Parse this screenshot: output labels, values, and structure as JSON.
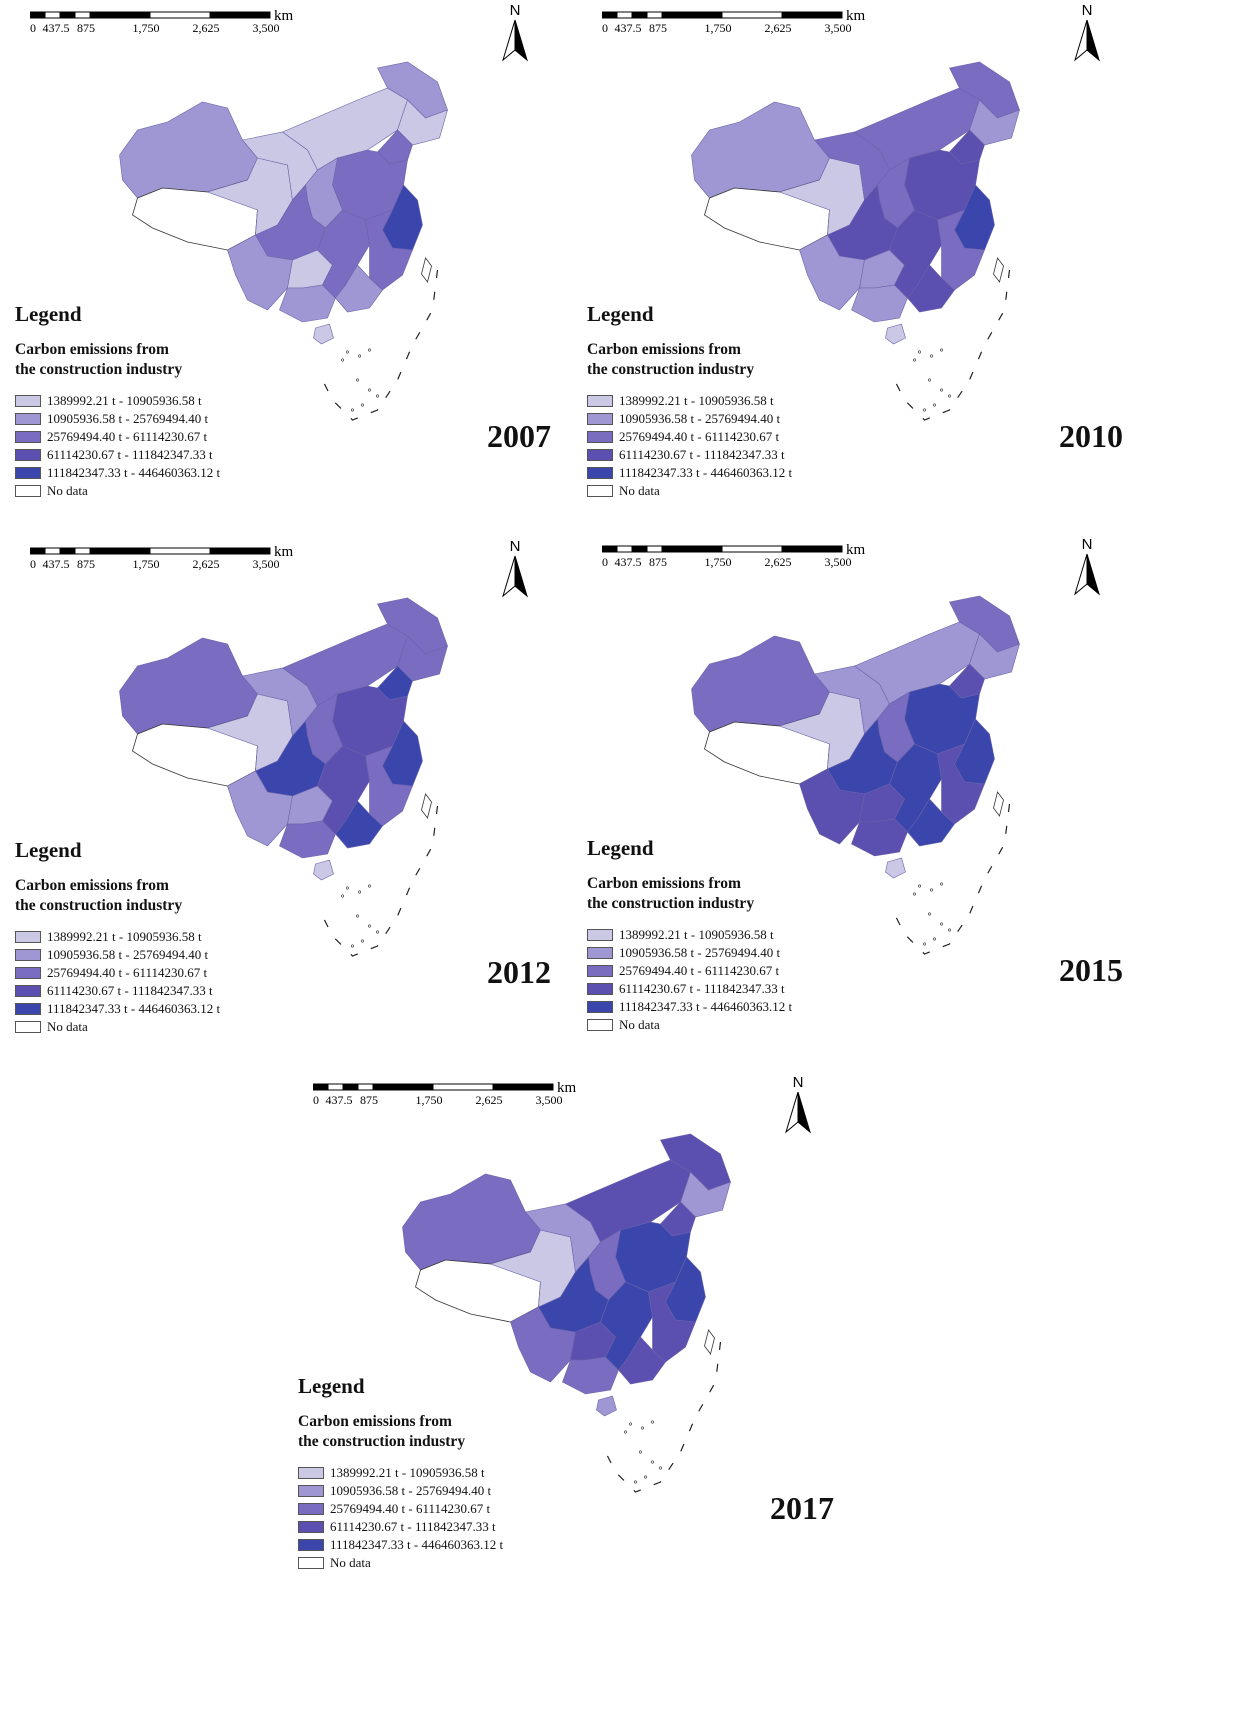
{
  "scale": {
    "unit": "km",
    "ticks": [
      "0",
      "437.5",
      "875",
      "1,750",
      "2,625",
      "3,500"
    ]
  },
  "north_label": "N",
  "legend": {
    "title": "Legend",
    "subtitle_line1": "Carbon emissions from",
    "subtitle_line2": "the construction industry",
    "classes": [
      {
        "label": "1389992.21 t - 10905936.58 t",
        "color": "#cbc8e6"
      },
      {
        "label": "10905936.58 t - 25769494.40 t",
        "color": "#9f97d3"
      },
      {
        "label": "25769494.40 t - 61114230.67 t",
        "color": "#7a6cc0"
      },
      {
        "label": "61114230.67 t - 111842347.33 t",
        "color": "#5b4fb0"
      },
      {
        "label": "111842347.33 t - 446460363.12 t",
        "color": "#3b46ad"
      },
      {
        "label": "No data",
        "color": "#ffffff"
      }
    ]
  },
  "maps": [
    {
      "year": "2007",
      "class_by_region": {
        "xinjiang": 1,
        "tibet": 5,
        "qinghai": 0,
        "gansu": 0,
        "inner_mongolia": 0,
        "heilongjiang": 1,
        "jilin": 0,
        "liaoning": 2,
        "north_plain": 2,
        "shaanxi": 1,
        "sichuan": 2,
        "yunnan": 1,
        "guizhou": 0,
        "guangxi": 1,
        "south_central": 2,
        "jiangsu_zhejiang": 4,
        "fujian": 2,
        "guangdong": 1,
        "hainan": 0
      }
    },
    {
      "year": "2010",
      "class_by_region": {
        "xinjiang": 1,
        "tibet": 5,
        "qinghai": 0,
        "gansu": 2,
        "inner_mongolia": 2,
        "heilongjiang": 2,
        "jilin": 1,
        "liaoning": 3,
        "north_plain": 3,
        "shaanxi": 2,
        "sichuan": 3,
        "yunnan": 1,
        "guizhou": 1,
        "guangxi": 1,
        "south_central": 3,
        "jiangsu_zhejiang": 4,
        "fujian": 2,
        "guangdong": 3,
        "hainan": 0
      }
    },
    {
      "year": "2012",
      "class_by_region": {
        "xinjiang": 2,
        "tibet": 5,
        "qinghai": 0,
        "gansu": 1,
        "inner_mongolia": 2,
        "heilongjiang": 2,
        "jilin": 2,
        "liaoning": 4,
        "north_plain": 3,
        "shaanxi": 2,
        "sichuan": 4,
        "yunnan": 1,
        "guizhou": 1,
        "guangxi": 2,
        "south_central": 3,
        "jiangsu_zhejiang": 4,
        "fujian": 2,
        "guangdong": 4,
        "hainan": 0
      }
    },
    {
      "year": "2015",
      "class_by_region": {
        "xinjiang": 2,
        "tibet": 5,
        "qinghai": 0,
        "gansu": 1,
        "inner_mongolia": 1,
        "heilongjiang": 2,
        "jilin": 1,
        "liaoning": 3,
        "north_plain": 4,
        "shaanxi": 2,
        "sichuan": 4,
        "yunnan": 3,
        "guizhou": 3,
        "guangxi": 3,
        "south_central": 4,
        "jiangsu_zhejiang": 4,
        "fujian": 3,
        "guangdong": 4,
        "hainan": 0
      }
    },
    {
      "year": "2017",
      "class_by_region": {
        "xinjiang": 2,
        "tibet": 5,
        "qinghai": 0,
        "gansu": 1,
        "inner_mongolia": 3,
        "heilongjiang": 3,
        "jilin": 1,
        "liaoning": 3,
        "north_plain": 4,
        "shaanxi": 2,
        "sichuan": 4,
        "yunnan": 2,
        "guizhou": 3,
        "guangxi": 2,
        "south_central": 4,
        "jiangsu_zhejiang": 4,
        "fujian": 3,
        "guangdong": 3,
        "hainan": 1
      }
    }
  ]
}
